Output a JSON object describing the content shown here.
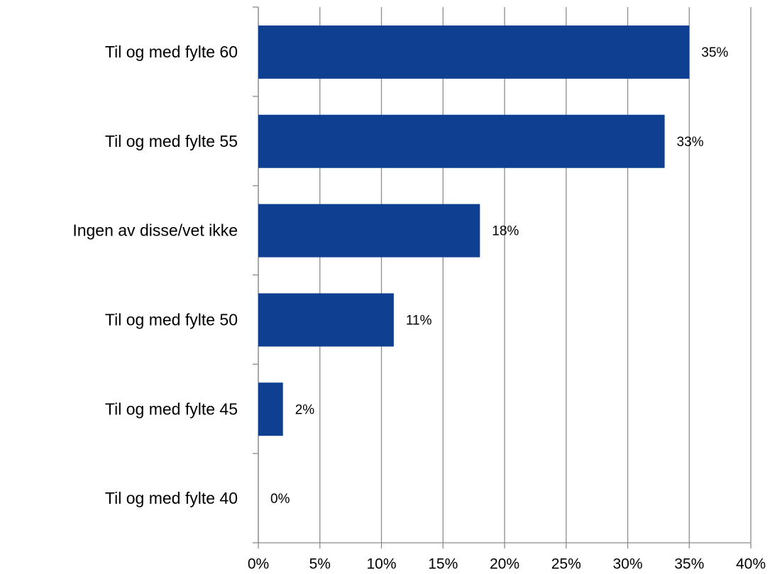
{
  "chart_data": {
    "type": "bar",
    "orientation": "horizontal",
    "categories": [
      "Til og med fylte 60",
      "Til og med fylte 55",
      "Ingen av disse/vet ikke",
      "Til og med fylte 50",
      "Til og med fylte 45",
      "Til og med fylte 40"
    ],
    "values": [
      35,
      33,
      18,
      11,
      2,
      0
    ],
    "value_labels": [
      "35%",
      "33%",
      "18%",
      "11%",
      "2%",
      "0%"
    ],
    "color": "#0e3f90",
    "xlim": [
      0,
      40
    ],
    "xticks": [
      {
        "value": 0,
        "label": "0%"
      },
      {
        "value": 5,
        "label": "5%"
      },
      {
        "value": 10,
        "label": "10%"
      },
      {
        "value": 15,
        "label": "15%"
      },
      {
        "value": 20,
        "label": "20%"
      },
      {
        "value": 25,
        "label": "25%"
      },
      {
        "value": 30,
        "label": "30%"
      },
      {
        "value": 35,
        "label": "35%"
      },
      {
        "value": 40,
        "label": "40%"
      }
    ],
    "grid": true
  }
}
